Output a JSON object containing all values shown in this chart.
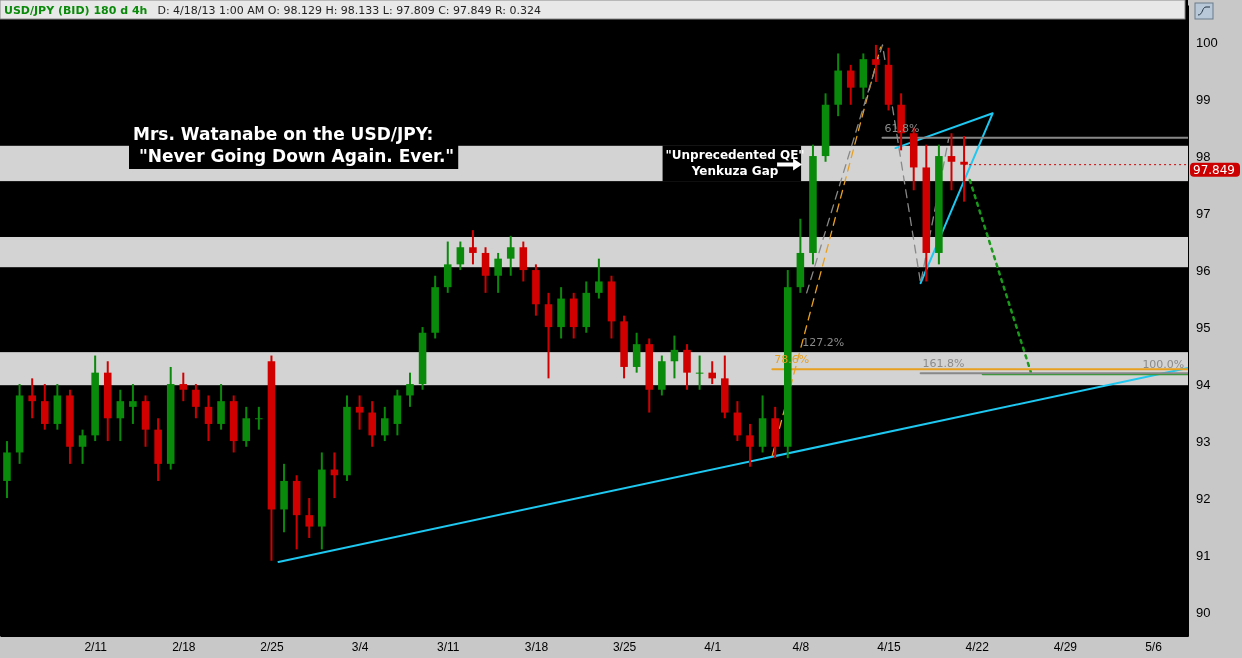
{
  "chart_data": {
    "type": "candlestick",
    "title": "USD/JPY (BID) 180 d 4h",
    "subtitle": "D: 4/18/13 1:00 AM   O: 98.129   H: 98.133   L: 97.809   C: 97.849   R: 0.324",
    "xlim": [
      "--02-03T10:40",
      "--05-08T18:45"
    ],
    "xticks": [
      {
        "value": "--02-11",
        "label": "2/11"
      },
      {
        "value": "--02-18",
        "label": "2/18"
      },
      {
        "value": "--02-25",
        "label": "2/25"
      },
      {
        "value": "--03-04",
        "label": "3/4"
      },
      {
        "value": "--03-11",
        "label": "3/11"
      },
      {
        "value": "--03-18",
        "label": "3/18"
      },
      {
        "value": "--03-25",
        "label": "3/25"
      },
      {
        "value": "--04-01",
        "label": "4/1"
      },
      {
        "value": "--04-08",
        "label": "4/8"
      },
      {
        "value": "--04-15",
        "label": "4/15"
      },
      {
        "value": "--04-22",
        "label": "4/22"
      },
      {
        "value": "--04-29",
        "label": "4/29"
      },
      {
        "value": "--05-06",
        "label": "5/6"
      }
    ],
    "ylim": [
      89.58,
      100.65
    ],
    "yticks": [
      90,
      91,
      92,
      93,
      94,
      95,
      96,
      97,
      98,
      99,
      100
    ],
    "x": [
      "--02-04",
      "--02-05",
      "--02-06",
      "--02-07",
      "--02-08",
      "--02-09",
      "--02-10",
      "--02-11",
      "--02-12",
      "--02-13",
      "--02-14",
      "--02-15",
      "--02-16",
      "--02-17",
      "--02-18",
      "--02-19",
      "--02-20",
      "--02-21",
      "--02-22",
      "--02-23",
      "--02-24",
      "--02-25",
      "--02-26",
      "--02-27",
      "--02-28",
      "--03-01",
      "--03-02",
      "--03-03",
      "--03-04",
      "--03-05",
      "--03-06",
      "--03-07",
      "--03-08",
      "--03-09",
      "--03-10",
      "--03-11",
      "--03-12",
      "--03-13",
      "--03-14",
      "--03-15",
      "--03-16",
      "--03-17",
      "--03-18",
      "--03-19",
      "--03-20",
      "--03-21",
      "--03-22",
      "--03-23",
      "--03-24",
      "--03-25",
      "--03-26",
      "--03-27",
      "--03-28",
      "--03-29",
      "--03-30",
      "--03-31",
      "--04-01",
      "--04-02",
      "--04-03",
      "--04-04",
      "--04-05",
      "--04-06",
      "--04-07",
      "--04-08",
      "--04-09",
      "--04-10",
      "--04-11",
      "--04-12",
      "--04-13",
      "--04-14",
      "--04-15",
      "--04-16",
      "--04-17",
      "--04-18",
      "--04-19",
      "--04-20",
      "--04-21"
    ],
    "ohlc": [
      [
        92.3,
        93.0,
        92.0,
        92.8
      ],
      [
        92.8,
        94.0,
        92.6,
        93.8
      ],
      [
        93.8,
        94.1,
        93.4,
        93.7
      ],
      [
        93.7,
        94.0,
        93.2,
        93.3
      ],
      [
        93.3,
        94.0,
        93.2,
        93.8
      ],
      [
        93.8,
        93.9,
        92.6,
        92.9
      ],
      [
        92.9,
        93.2,
        92.6,
        93.1
      ],
      [
        93.1,
        94.5,
        93.0,
        94.2
      ],
      [
        94.2,
        94.4,
        93.0,
        93.4
      ],
      [
        93.4,
        93.9,
        93.0,
        93.7
      ],
      [
        93.6,
        94.0,
        93.3,
        93.7
      ],
      [
        93.7,
        93.8,
        92.9,
        93.2
      ],
      [
        93.2,
        93.4,
        92.3,
        92.6
      ],
      [
        92.6,
        94.3,
        92.5,
        94.0
      ],
      [
        94.0,
        94.2,
        93.7,
        93.9
      ],
      [
        93.9,
        94.0,
        93.4,
        93.6
      ],
      [
        93.6,
        93.8,
        93.0,
        93.3
      ],
      [
        93.3,
        94.0,
        93.2,
        93.7
      ],
      [
        93.7,
        93.8,
        92.8,
        93.0
      ],
      [
        93.0,
        93.6,
        92.9,
        93.4
      ],
      [
        93.4,
        93.6,
        93.2,
        93.4
      ],
      [
        94.4,
        94.5,
        90.9,
        91.8
      ],
      [
        91.8,
        92.6,
        91.4,
        92.3
      ],
      [
        92.3,
        92.4,
        91.1,
        91.7
      ],
      [
        91.7,
        92.0,
        91.3,
        91.5
      ],
      [
        91.5,
        92.8,
        91.1,
        92.5
      ],
      [
        92.5,
        92.8,
        92.0,
        92.4
      ],
      [
        92.4,
        93.8,
        92.3,
        93.6
      ],
      [
        93.6,
        93.8,
        93.2,
        93.5
      ],
      [
        93.5,
        93.7,
        92.9,
        93.1
      ],
      [
        93.1,
        93.6,
        93.0,
        93.4
      ],
      [
        93.3,
        93.9,
        93.1,
        93.8
      ],
      [
        93.8,
        94.2,
        93.6,
        94.0
      ],
      [
        94.0,
        95.0,
        93.9,
        94.9
      ],
      [
        94.9,
        95.9,
        94.8,
        95.7
      ],
      [
        95.7,
        96.5,
        95.6,
        96.1
      ],
      [
        96.1,
        96.5,
        96.0,
        96.4
      ],
      [
        96.4,
        96.7,
        96.1,
        96.3
      ],
      [
        96.3,
        96.4,
        95.6,
        95.9
      ],
      [
        95.9,
        96.3,
        95.6,
        96.2
      ],
      [
        96.2,
        96.6,
        95.9,
        96.4
      ],
      [
        96.4,
        96.5,
        95.8,
        96.0
      ],
      [
        96.0,
        96.1,
        95.2,
        95.4
      ],
      [
        95.4,
        95.6,
        94.1,
        95.0
      ],
      [
        95.0,
        95.7,
        94.8,
        95.5
      ],
      [
        95.5,
        95.6,
        94.8,
        95.0
      ],
      [
        95.0,
        95.8,
        94.9,
        95.6
      ],
      [
        95.6,
        96.2,
        95.5,
        95.8
      ],
      [
        95.8,
        95.9,
        94.8,
        95.1
      ],
      [
        95.1,
        95.2,
        94.1,
        94.3
      ],
      [
        94.3,
        94.9,
        94.2,
        94.7
      ],
      [
        94.7,
        94.8,
        93.5,
        93.9
      ],
      [
        93.9,
        94.5,
        93.8,
        94.4
      ],
      [
        94.4,
        94.85,
        94.1,
        94.6
      ],
      [
        94.6,
        94.7,
        93.9,
        94.2
      ],
      [
        94.2,
        94.5,
        93.9,
        94.2
      ],
      [
        94.2,
        94.4,
        94.0,
        94.1
      ],
      [
        94.1,
        94.5,
        93.4,
        93.5
      ],
      [
        93.5,
        93.7,
        93.0,
        93.1
      ],
      [
        93.1,
        93.3,
        92.55,
        92.9
      ],
      [
        92.9,
        93.8,
        92.8,
        93.4
      ],
      [
        93.4,
        93.6,
        92.7,
        92.9
      ],
      [
        92.9,
        96.0,
        92.7,
        95.7
      ],
      [
        95.7,
        96.9,
        95.6,
        96.3
      ],
      [
        96.3,
        98.2,
        96.1,
        98.0
      ],
      [
        98.0,
        99.1,
        97.9,
        98.9
      ],
      [
        98.9,
        99.8,
        98.7,
        99.5
      ],
      [
        99.5,
        99.6,
        98.9,
        99.2
      ],
      [
        99.2,
        99.8,
        99.0,
        99.7
      ],
      [
        99.7,
        99.95,
        99.3,
        99.6
      ],
      [
        99.6,
        99.9,
        98.8,
        98.9
      ],
      [
        98.9,
        99.1,
        98.1,
        98.4
      ],
      [
        98.4,
        98.5,
        97.4,
        97.8
      ],
      [
        97.8,
        98.2,
        95.8,
        96.3
      ],
      [
        96.3,
        98.2,
        96.1,
        98.0
      ],
      [
        98.0,
        98.4,
        97.4,
        97.9
      ],
      [
        97.9,
        98.35,
        97.2,
        97.849
      ]
    ],
    "series": [
      {
        "type": "line",
        "color": "#1ec8f0",
        "x": [
          "--02-25T13:20",
          "--05-08T18:45"
        ],
        "values": [
          90.88,
          94.28
        ]
      },
      {
        "type": "line",
        "color": "#1ec8f0",
        "x": [
          "--04-15T13:20",
          "--04-23T06:30",
          "--04-17T13:10"
        ],
        "values": [
          98.14,
          98.75,
          95.77
        ]
      },
      {
        "type": "line",
        "color": "#1a9a1a",
        "line_style": "dotted",
        "x": [
          "--04-21T10:50",
          "--04-26T07:10"
        ],
        "values": [
          97.58,
          94.21
        ]
      },
      {
        "type": "line",
        "color": "#2a9a2a",
        "x": [
          "--04-22T11:30",
          "--05-08T18:45"
        ],
        "values": [
          94.17,
          94.17
        ]
      },
      {
        "type": "line",
        "color": "#e8a020",
        "line_style": "dashed",
        "x": [
          "--04-05T18:30",
          "--04-14T08:50"
        ],
        "values": [
          92.75,
          99.91
        ]
      },
      {
        "type": "line",
        "color": "#888888",
        "line_style": "dashed",
        "x": [
          "--04-08T12:00",
          "--04-14T12:30",
          "--04-17T13:10",
          "--04-19T18:30"
        ],
        "values": [
          95.6,
          99.95,
          95.77,
          98.3
        ]
      },
      {
        "type": "line",
        "color": "#888888",
        "x": [
          "--04-14T12:30",
          "--05-08T18:45"
        ],
        "values": [
          98.32,
          98.32
        ]
      },
      {
        "type": "line",
        "color": "#e8a020",
        "x": [
          "--04-05T18:30",
          "--05-08T18:45"
        ],
        "values": [
          94.26,
          94.26
        ]
      },
      {
        "type": "line",
        "color": "#888888",
        "x": [
          "--04-17T13:10",
          "--05-08T18:45"
        ],
        "values": [
          94.19,
          94.19
        ]
      }
    ],
    "bands": [
      {
        "axis": "y",
        "from": 93.98,
        "to": 94.56,
        "color": "#d3d3d3"
      },
      {
        "axis": "y",
        "from": 96.05,
        "to": 96.58,
        "color": "#d3d3d3"
      },
      {
        "axis": "y",
        "from": 97.56,
        "to": 98.18,
        "color": "#d3d3d3"
      }
    ],
    "ref_lines": [
      {
        "axis": "y",
        "value": 97.849,
        "label": "97.849",
        "color": "#cc0000"
      }
    ],
    "annotations": [
      "Mrs. Watanabe on the USD/JPY:\n \"Never Going Down Again. Ever.\"",
      {
        "text": "\"Unprecedented QE\"\nYenkuza Gap",
        "x": "--04-08T09:00",
        "y": 97.87
      },
      {
        "text": "61.8%",
        "x": "--04-14T12:30",
        "y": 98.32
      },
      {
        "text": "78.6%",
        "x": "--04-05T18:30",
        "y": 94.26
      },
      {
        "text": "127.2%",
        "x": "--04-08T00:00",
        "y": 94.56
      },
      {
        "text": "161.8%",
        "x": "--04-17T13:10",
        "y": 94.19
      },
      {
        "text": "100.0%",
        "x": "--05-05T00:00",
        "y": 94.17
      }
    ],
    "grid": false
  }
}
